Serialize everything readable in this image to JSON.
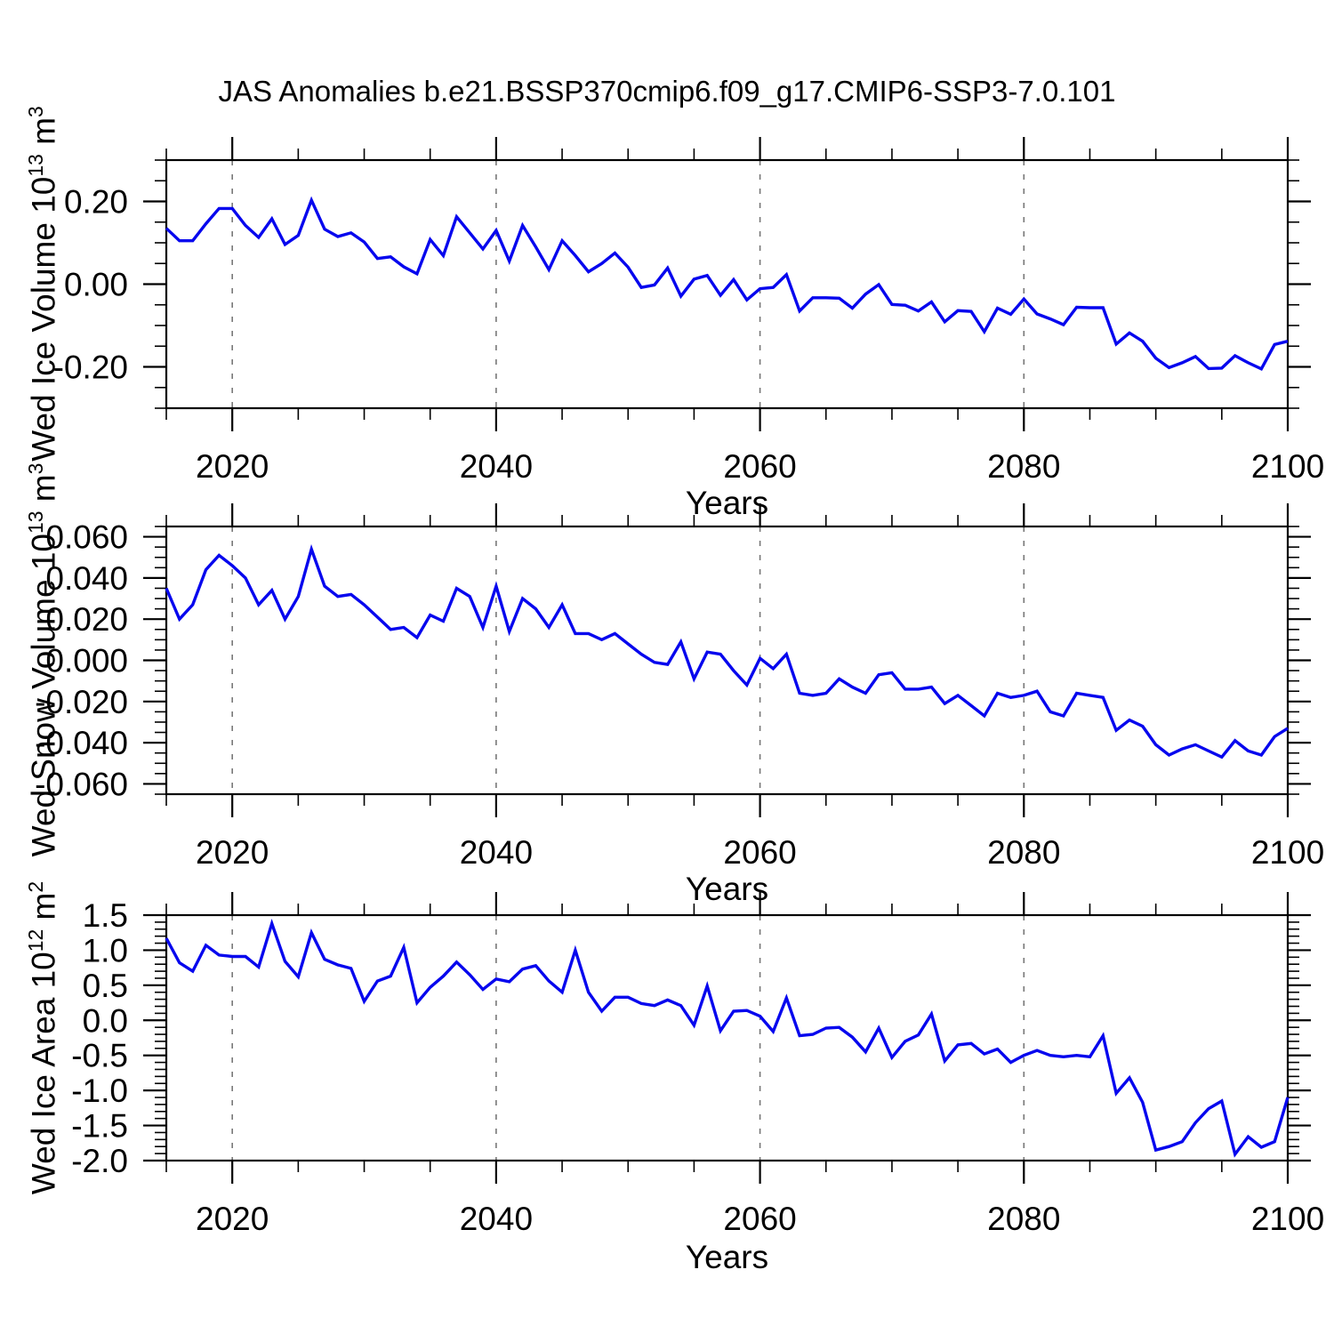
{
  "title": "JAS Anomalies b.e21.BSSP370cmip6.f09_g17.CMIP6-SSP3-7.0.101",
  "xlabel": "Years",
  "line_color": "#0606ee",
  "grid_color": "#777777",
  "axis_color": "#000000",
  "chart_data": [
    {
      "type": "line",
      "name": "wed-ice-volume",
      "ylabel": {
        "text": "Wed Ice Volume 10",
        "scale_exp": "13",
        "unit": " m",
        "unit_exp": "3"
      },
      "xlabel": "Years",
      "xlim": [
        2015,
        2100
      ],
      "ylim": [
        -0.3,
        0.3
      ],
      "legend": "none",
      "grid_x_dashed": [
        2020,
        2040,
        2060,
        2080
      ],
      "xticks": {
        "labels": [
          "2020",
          "2040",
          "2060",
          "2080",
          "2100"
        ],
        "values": [
          2020,
          2040,
          2060,
          2080,
          2100
        ],
        "minor_step": 5
      },
      "yticks": {
        "labels": [
          "0.20",
          "0.00",
          "-0.20"
        ],
        "values": [
          0.2,
          0.0,
          -0.2
        ],
        "minor_step": 0.05
      },
      "x_start": 2015,
      "x_step": 1,
      "values": [
        0.135,
        0.105,
        0.105,
        0.146,
        0.183,
        0.183,
        0.142,
        0.113,
        0.158,
        0.096,
        0.118,
        0.203,
        0.133,
        0.115,
        0.124,
        0.102,
        0.062,
        0.066,
        0.042,
        0.025,
        0.108,
        0.069,
        0.163,
        0.124,
        0.085,
        0.13,
        0.056,
        0.142,
        0.09,
        0.035,
        0.105,
        0.069,
        0.03,
        0.05,
        0.075,
        0.041,
        -0.008,
        -0.002,
        0.039,
        -0.029,
        0.012,
        0.021,
        -0.027,
        0.011,
        -0.038,
        -0.011,
        -0.008,
        0.023,
        -0.065,
        -0.033,
        -0.033,
        -0.034,
        -0.058,
        -0.024,
        -0.001,
        -0.049,
        -0.051,
        -0.065,
        -0.043,
        -0.091,
        -0.064,
        -0.066,
        -0.115,
        -0.058,
        -0.073,
        -0.036,
        -0.072,
        -0.084,
        -0.098,
        -0.056,
        -0.057,
        -0.057,
        -0.145,
        -0.118,
        -0.138,
        -0.179,
        -0.202,
        -0.19,
        -0.175,
        -0.204,
        -0.203,
        -0.173,
        -0.19,
        -0.205,
        -0.146,
        -0.138
      ]
    },
    {
      "type": "line",
      "name": "wed-snow-volume",
      "ylabel": {
        "text": "Wed Snow Volume 10",
        "scale_exp": "13",
        "unit": " m",
        "unit_exp": "3"
      },
      "xlabel": "Years",
      "xlim": [
        2015,
        2100
      ],
      "ylim": [
        -0.065,
        0.065
      ],
      "legend": "none",
      "grid_x_dashed": [
        2020,
        2040,
        2060,
        2080
      ],
      "xticks": {
        "labels": [
          "2020",
          "2040",
          "2060",
          "2080",
          "2100"
        ],
        "values": [
          2020,
          2040,
          2060,
          2080,
          2100
        ],
        "minor_step": 5
      },
      "yticks": {
        "labels": [
          "0.060",
          "0.040",
          "0.020",
          "0.000",
          "-0.020",
          "-0.040",
          "-0.060"
        ],
        "values": [
          0.06,
          0.04,
          0.02,
          0.0,
          -0.02,
          -0.04,
          -0.06
        ],
        "minor_step": 0.005
      },
      "x_start": 2015,
      "x_step": 1,
      "values": [
        0.035,
        0.02,
        0.027,
        0.044,
        0.051,
        0.046,
        0.04,
        0.027,
        0.034,
        0.02,
        0.031,
        0.054,
        0.036,
        0.031,
        0.032,
        0.027,
        0.021,
        0.015,
        0.016,
        0.011,
        0.022,
        0.019,
        0.035,
        0.031,
        0.016,
        0.036,
        0.014,
        0.03,
        0.025,
        0.016,
        0.027,
        0.013,
        0.013,
        0.01,
        0.013,
        0.008,
        0.003,
        -0.001,
        -0.002,
        0.009,
        -0.009,
        0.004,
        0.003,
        -0.005,
        -0.012,
        0.001,
        -0.004,
        0.003,
        -0.016,
        -0.017,
        -0.016,
        -0.009,
        -0.013,
        -0.016,
        -0.007,
        -0.006,
        -0.014,
        -0.014,
        -0.013,
        -0.021,
        -0.017,
        -0.022,
        -0.027,
        -0.016,
        -0.018,
        -0.017,
        -0.015,
        -0.025,
        -0.027,
        -0.016,
        -0.017,
        -0.018,
        -0.034,
        -0.029,
        -0.032,
        -0.041,
        -0.046,
        -0.043,
        -0.041,
        -0.044,
        -0.047,
        -0.039,
        -0.044,
        -0.046,
        -0.037,
        -0.033
      ]
    },
    {
      "type": "line",
      "name": "wed-ice-area",
      "ylabel": {
        "text": "Wed Ice Area 10",
        "scale_exp": "12",
        "unit": " m",
        "unit_exp": "2"
      },
      "xlabel": "Years",
      "xlim": [
        2015,
        2100
      ],
      "ylim": [
        -2.0,
        1.5
      ],
      "legend": "none",
      "grid_x_dashed": [
        2020,
        2040,
        2060,
        2080
      ],
      "xticks": {
        "labels": [
          "2020",
          "2040",
          "2060",
          "2080",
          "2100"
        ],
        "values": [
          2020,
          2040,
          2060,
          2080,
          2100
        ],
        "minor_step": 5
      },
      "yticks": {
        "labels": [
          "1.5",
          "1.0",
          "0.5",
          "0.0",
          "-0.5",
          "-1.0",
          "-1.5",
          "-2.0"
        ],
        "values": [
          1.5,
          1.0,
          0.5,
          0.0,
          -0.5,
          -1.0,
          -1.5,
          -2.0
        ],
        "minor_step": 0.1
      },
      "x_start": 2015,
      "x_step": 1,
      "values": [
        1.17,
        0.82,
        0.7,
        1.07,
        0.93,
        0.91,
        0.91,
        0.76,
        1.38,
        0.84,
        0.62,
        1.25,
        0.87,
        0.79,
        0.74,
        0.27,
        0.56,
        0.63,
        1.04,
        0.25,
        0.47,
        0.63,
        0.83,
        0.65,
        0.44,
        0.59,
        0.55,
        0.73,
        0.78,
        0.56,
        0.4,
        1.0,
        0.4,
        0.13,
        0.33,
        0.33,
        0.24,
        0.21,
        0.29,
        0.21,
        -0.07,
        0.49,
        -0.15,
        0.13,
        0.14,
        0.06,
        -0.16,
        0.32,
        -0.22,
        -0.2,
        -0.11,
        -0.1,
        -0.24,
        -0.45,
        -0.11,
        -0.53,
        -0.3,
        -0.21,
        0.09,
        -0.58,
        -0.35,
        -0.33,
        -0.48,
        -0.41,
        -0.6,
        -0.5,
        -0.43,
        -0.5,
        -0.52,
        -0.5,
        -0.52,
        -0.22,
        -1.04,
        -0.82,
        -1.17,
        -1.85,
        -1.8,
        -1.73,
        -1.46,
        -1.26,
        -1.15,
        -1.91,
        -1.66,
        -1.81,
        -1.73,
        -1.1
      ]
    }
  ]
}
